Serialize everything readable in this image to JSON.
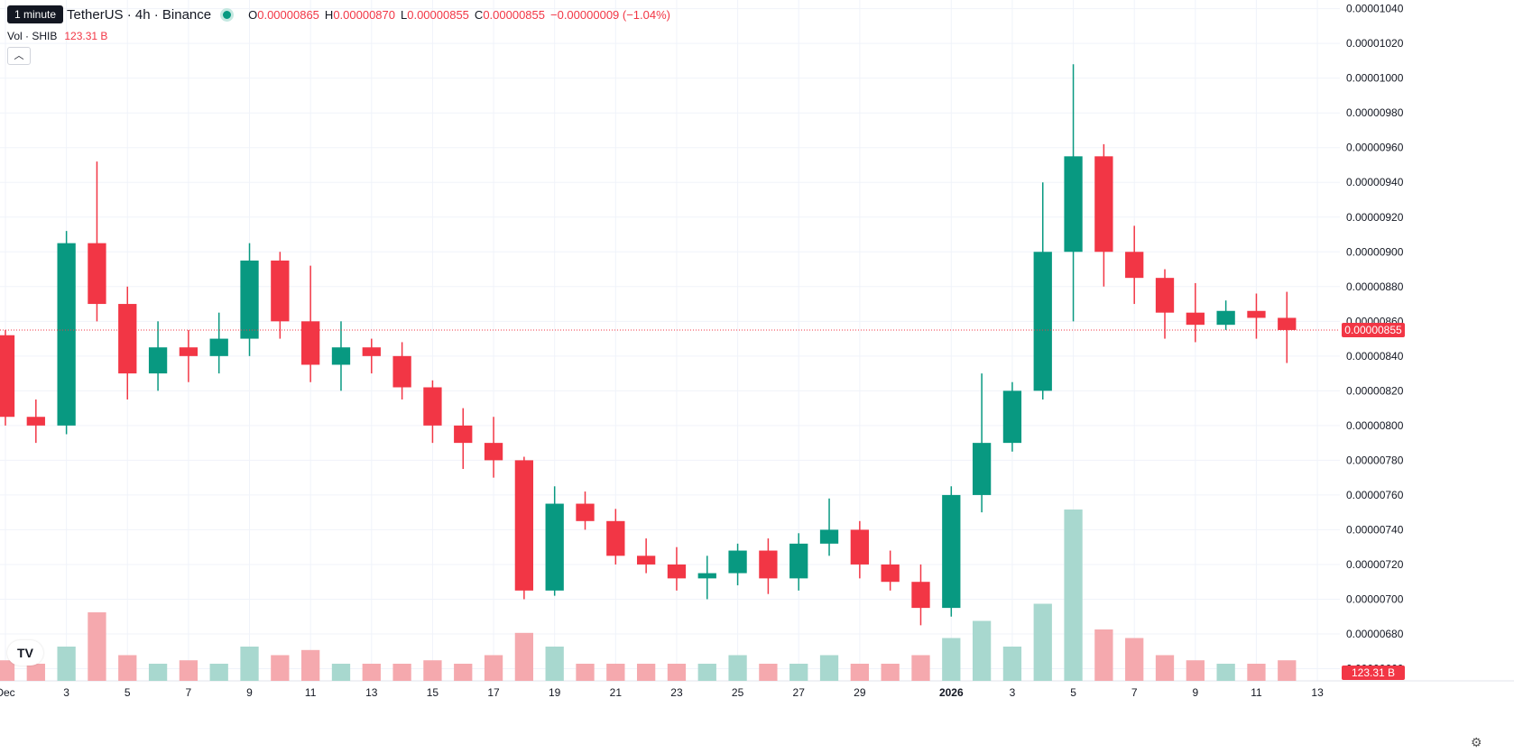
{
  "legend": {
    "tooltip": "1 minute",
    "symbol": "TetherUS · 4h · Binance",
    "open_label": "O",
    "open": "0.00000865",
    "high_label": "H",
    "high": "0.00000870",
    "low_label": "L",
    "low": "0.00000855",
    "close_label": "C",
    "close": "0.00000855",
    "change": "−0.00000009 (−1.04%)",
    "vol_label": "Vol · SHIB",
    "vol_value": "123.31 B"
  },
  "colors": {
    "up": "#089981",
    "down": "#f23645",
    "up_vol": "#a8d8cf",
    "down_vol": "#f5a9ae",
    "grid": "#f0f3fa"
  },
  "icons": {
    "collapse": "chevron-up-icon",
    "logo": "tradingview-logo",
    "settings": "gear-icon"
  },
  "chart_data": {
    "type": "candlestick",
    "interval": "4h",
    "price_labels": [
      "0.00001040",
      "0.00001020",
      "0.00001000",
      "0.00000980",
      "0.00000960",
      "0.00000940",
      "0.00000920",
      "0.00000900",
      "0.00000880",
      "0.00000860",
      "0.00000840",
      "0.00000820",
      "0.00000800",
      "0.00000780",
      "0.00000760",
      "0.00000740",
      "0.00000720",
      "0.00000700",
      "0.00000680",
      "0.00000660"
    ],
    "ylim": [
      6.53e-06,
      1.045e-05
    ],
    "current_price": 8.55e-06,
    "current_price_label": "0.00000855",
    "volume_label": "123.31 B",
    "x_labels": [
      "Dec",
      "3",
      "5",
      "7",
      "9",
      "11",
      "13",
      "15",
      "17",
      "19",
      "21",
      "23",
      "25",
      "27",
      "29",
      "2026",
      "3",
      "5",
      "7",
      "9",
      "11",
      "13"
    ],
    "x_label_days": [
      1,
      3,
      5,
      7,
      9,
      11,
      13,
      15,
      17,
      19,
      21,
      23,
      25,
      27,
      29,
      32,
      34,
      36,
      38,
      40,
      42,
      44
    ],
    "day_range": [
      1,
      44.5
    ],
    "daily": [
      [
        1,
        8.52e-06,
        8.55e-06,
        8e-06,
        8.05e-06
      ],
      [
        2,
        8.05e-06,
        8.15e-06,
        7.9e-06,
        8e-06
      ],
      [
        3,
        8e-06,
        9.12e-06,
        7.95e-06,
        9.05e-06
      ],
      [
        4,
        9.05e-06,
        9.52e-06,
        8.6e-06,
        8.7e-06
      ],
      [
        5,
        8.7e-06,
        8.8e-06,
        8.15e-06,
        8.3e-06
      ],
      [
        6,
        8.3e-06,
        8.6e-06,
        8.2e-06,
        8.45e-06
      ],
      [
        7,
        8.45e-06,
        8.55e-06,
        8.25e-06,
        8.4e-06
      ],
      [
        8,
        8.4e-06,
        8.65e-06,
        8.3e-06,
        8.5e-06
      ],
      [
        9,
        8.5e-06,
        9.05e-06,
        8.4e-06,
        8.95e-06
      ],
      [
        10,
        8.95e-06,
        9e-06,
        8.5e-06,
        8.6e-06
      ],
      [
        11,
        8.6e-06,
        8.92e-06,
        8.25e-06,
        8.35e-06
      ],
      [
        12,
        8.35e-06,
        8.6e-06,
        8.2e-06,
        8.45e-06
      ],
      [
        13,
        8.45e-06,
        8.5e-06,
        8.3e-06,
        8.4e-06
      ],
      [
        14,
        8.4e-06,
        8.48e-06,
        8.15e-06,
        8.22e-06
      ],
      [
        15,
        8.22e-06,
        8.26e-06,
        7.9e-06,
        8e-06
      ],
      [
        16,
        8e-06,
        8.1e-06,
        7.75e-06,
        7.9e-06
      ],
      [
        17,
        7.9e-06,
        8.05e-06,
        7.7e-06,
        7.8e-06
      ],
      [
        18,
        7.8e-06,
        7.82e-06,
        7e-06,
        7.05e-06
      ],
      [
        19,
        7.05e-06,
        7.65e-06,
        7.02e-06,
        7.55e-06
      ],
      [
        20,
        7.55e-06,
        7.62e-06,
        7.4e-06,
        7.45e-06
      ],
      [
        21,
        7.45e-06,
        7.52e-06,
        7.2e-06,
        7.25e-06
      ],
      [
        22,
        7.25e-06,
        7.35e-06,
        7.15e-06,
        7.2e-06
      ],
      [
        23,
        7.2e-06,
        7.3e-06,
        7.05e-06,
        7.12e-06
      ],
      [
        24,
        7.12e-06,
        7.25e-06,
        7e-06,
        7.15e-06
      ],
      [
        25,
        7.15e-06,
        7.32e-06,
        7.08e-06,
        7.28e-06
      ],
      [
        26,
        7.28e-06,
        7.35e-06,
        7.03e-06,
        7.12e-06
      ],
      [
        27,
        7.12e-06,
        7.38e-06,
        7.05e-06,
        7.32e-06
      ],
      [
        28,
        7.32e-06,
        7.58e-06,
        7.25e-06,
        7.4e-06
      ],
      [
        29,
        7.4e-06,
        7.45e-06,
        7.12e-06,
        7.2e-06
      ],
      [
        30,
        7.2e-06,
        7.28e-06,
        7.05e-06,
        7.1e-06
      ],
      [
        31,
        7.1e-06,
        7.2e-06,
        6.85e-06,
        6.95e-06
      ],
      [
        32,
        6.95e-06,
        7.65e-06,
        6.9e-06,
        7.6e-06
      ],
      [
        33,
        7.6e-06,
        8.3e-06,
        7.5e-06,
        7.9e-06
      ],
      [
        34,
        7.9e-06,
        8.25e-06,
        7.85e-06,
        8.2e-06
      ],
      [
        35,
        8.2e-06,
        9.4e-06,
        8.15e-06,
        9e-06
      ],
      [
        36,
        9e-06,
        1.008e-05,
        8.6e-06,
        9.55e-06
      ],
      [
        37,
        9.55e-06,
        9.62e-06,
        8.8e-06,
        9e-06
      ],
      [
        38,
        9e-06,
        9.15e-06,
        8.7e-06,
        8.85e-06
      ],
      [
        39,
        8.85e-06,
        8.9e-06,
        8.5e-06,
        8.65e-06
      ],
      [
        40,
        8.65e-06,
        8.82e-06,
        8.48e-06,
        8.58e-06
      ],
      [
        41,
        8.58e-06,
        8.72e-06,
        8.55e-06,
        8.66e-06
      ],
      [
        42,
        8.66e-06,
        8.76e-06,
        8.5e-06,
        8.62e-06
      ],
      [
        43,
        8.62e-06,
        8.77e-06,
        8.36e-06,
        8.55e-06
      ]
    ],
    "volume_relative": [
      0.12,
      0.1,
      0.2,
      0.4,
      0.15,
      0.1,
      0.12,
      0.1,
      0.2,
      0.15,
      0.18,
      0.1,
      0.1,
      0.1,
      0.12,
      0.1,
      0.15,
      0.28,
      0.2,
      0.1,
      0.1,
      0.1,
      0.1,
      0.1,
      0.15,
      0.1,
      0.1,
      0.15,
      0.1,
      0.1,
      0.15,
      0.25,
      0.35,
      0.2,
      0.45,
      1.0,
      0.3,
      0.25,
      0.15,
      0.12,
      0.1,
      0.1,
      0.12
    ]
  }
}
